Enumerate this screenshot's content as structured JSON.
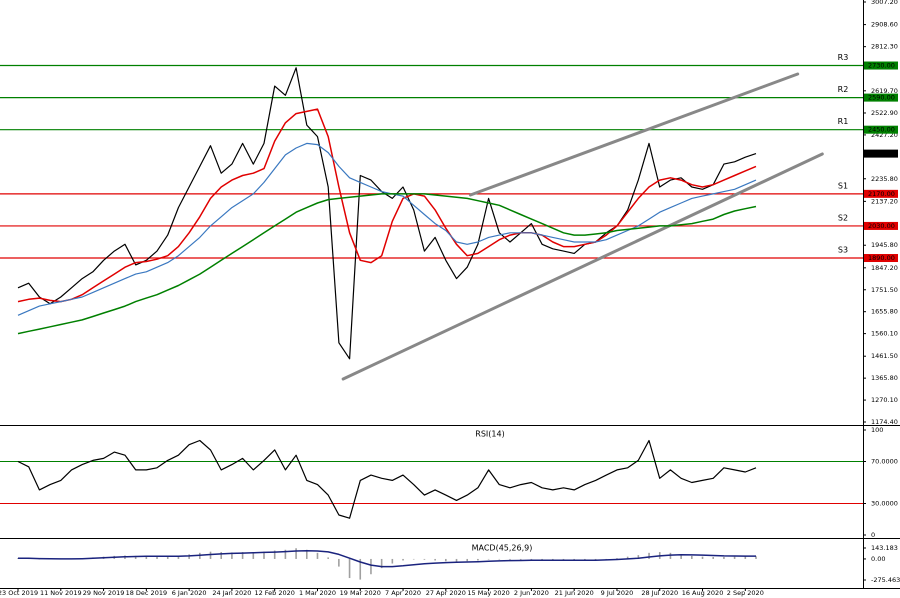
{
  "chart_data": [
    {
      "type": "line",
      "categories": [
        "23 Oct 2019",
        null,
        null,
        null,
        "11 Nov 2019",
        null,
        null,
        null,
        "29 Nov 2019",
        null,
        null,
        null,
        "18 Dec 2019",
        null,
        null,
        null,
        "6 Jan 2020",
        null,
        null,
        null,
        "24 Jan 2020",
        null,
        null,
        null,
        "12 Feb 2020",
        null,
        null,
        null,
        "1 Mar 2020",
        null,
        null,
        null,
        "19 Mar 2020",
        null,
        null,
        null,
        "7 Apr 2020",
        null,
        null,
        null,
        "27 Apr 2020",
        null,
        null,
        null,
        "15 May 2020",
        null,
        null,
        null,
        "2 Jun 2020",
        null,
        null,
        null,
        "21 Jun 2020",
        null,
        null,
        null,
        "9 Jul 2020",
        null,
        null,
        null,
        "28 Jul 2020",
        null,
        null,
        null,
        "16 Aug 2020",
        null,
        null,
        null,
        "2 Sep 2020",
        null
      ],
      "series": [
        {
          "color": "#000000",
          "width": 1.2,
          "values": [
            1760,
            1780,
            1720,
            1690,
            1720,
            1760,
            1800,
            1830,
            1880,
            1920,
            1950,
            1860,
            1880,
            1920,
            1990,
            2110,
            2200,
            2290,
            2380,
            2260,
            2300,
            2390,
            2300,
            2390,
            2640,
            2600,
            2720,
            2470,
            2420,
            2200,
            1520,
            1450,
            2250,
            2230,
            2180,
            2150,
            2200,
            2100,
            1920,
            1980,
            1880,
            1800,
            1850,
            1950,
            2150,
            2000,
            1960,
            2000,
            2040,
            1950,
            1930,
            1920,
            1910,
            1950,
            1960,
            2000,
            2030,
            2100,
            2230,
            2390,
            2200,
            2230,
            2240,
            2200,
            2190,
            2210,
            2300,
            2310,
            2330,
            2345.6
          ]
        },
        {
          "color": "#e00000",
          "width": 1.5,
          "values": [
            1700,
            1710,
            1715,
            1705,
            1700,
            1710,
            1730,
            1760,
            1790,
            1820,
            1850,
            1870,
            1875,
            1885,
            1900,
            1940,
            2000,
            2070,
            2150,
            2200,
            2230,
            2250,
            2260,
            2280,
            2400,
            2480,
            2520,
            2530,
            2540,
            2420,
            2200,
            2000,
            1880,
            1870,
            1900,
            2050,
            2150,
            2170,
            2160,
            2100,
            2020,
            1950,
            1900,
            1910,
            1940,
            1970,
            1990,
            2000,
            2000,
            1990,
            1960,
            1940,
            1940,
            1950,
            1960,
            1990,
            2030,
            2090,
            2150,
            2200,
            2230,
            2240,
            2230,
            2210,
            2200,
            2210,
            2230,
            2250,
            2270,
            2290
          ]
        },
        {
          "color": "#3a78c0",
          "width": 1.2,
          "values": [
            1640,
            1660,
            1680,
            1690,
            1700,
            1710,
            1720,
            1740,
            1760,
            1780,
            1800,
            1820,
            1830,
            1850,
            1870,
            1900,
            1940,
            1980,
            2030,
            2070,
            2110,
            2140,
            2170,
            2220,
            2280,
            2340,
            2370,
            2390,
            2385,
            2350,
            2290,
            2240,
            2220,
            2200,
            2180,
            2170,
            2160,
            2120,
            2080,
            2040,
            2010,
            1960,
            1950,
            1960,
            1980,
            1990,
            2000,
            2000,
            2000,
            1990,
            1980,
            1970,
            1960,
            1960,
            1960,
            1970,
            1990,
            2010,
            2030,
            2060,
            2090,
            2110,
            2130,
            2150,
            2160,
            2170,
            2180,
            2190,
            2210,
            2230
          ]
        },
        {
          "color": "#008000",
          "width": 1.5,
          "values": [
            1560,
            1570,
            1580,
            1590,
            1600,
            1610,
            1620,
            1635,
            1650,
            1665,
            1680,
            1700,
            1715,
            1730,
            1750,
            1770,
            1795,
            1820,
            1850,
            1880,
            1910,
            1940,
            1970,
            2000,
            2030,
            2060,
            2090,
            2110,
            2130,
            2145,
            2150,
            2155,
            2160,
            2165,
            2170,
            2170,
            2170,
            2170,
            2170,
            2165,
            2160,
            2155,
            2150,
            2140,
            2130,
            2120,
            2100,
            2080,
            2060,
            2040,
            2020,
            2000,
            1990,
            1990,
            1995,
            2000,
            2010,
            2015,
            2020,
            2025,
            2030,
            2030,
            2035,
            2040,
            2050,
            2060,
            2080,
            2095,
            2105,
            2115
          ]
        }
      ],
      "ylim": [
        1174.4,
        3007.2
      ],
      "yticks": [
        {
          "value": 3007.2,
          "label": "3007.20"
        },
        {
          "value": 2908.6,
          "label": "2908.60"
        },
        {
          "value": 2812.3,
          "label": "2812.30"
        },
        {
          "value": 2619.7,
          "label": "2619.70"
        },
        {
          "value": 2522.9,
          "label": "2522.90"
        },
        {
          "value": 2427.2,
          "label": "2427.20"
        },
        {
          "value": 2235.8,
          "label": "2235.80"
        },
        {
          "value": 2137.2,
          "label": "2137.20"
        },
        {
          "value": 1945.8,
          "label": "1945.80"
        },
        {
          "value": 1847.2,
          "label": "1847.20"
        },
        {
          "value": 1751.5,
          "label": "1751.50"
        },
        {
          "value": 1655.8,
          "label": "1655.80"
        },
        {
          "value": 1560.1,
          "label": "1560.10"
        },
        {
          "value": 1461.5,
          "label": "1461.50"
        },
        {
          "value": 1365.8,
          "label": "1365.80"
        },
        {
          "value": 1270.1,
          "label": "1270.10"
        },
        {
          "value": 1174.4,
          "label": "1174.40"
        }
      ],
      "levels": [
        {
          "name": "R3",
          "value": 2730,
          "label": "2730.00",
          "color": "#008000"
        },
        {
          "name": "R2",
          "value": 2590,
          "label": "2590.00",
          "color": "#008000"
        },
        {
          "name": "R1",
          "value": 2450,
          "label": "2450.00",
          "color": "#008000"
        },
        {
          "name": "S1",
          "value": 2170,
          "label": "2170.00",
          "color": "#e00000"
        },
        {
          "name": "S2",
          "value": 2030,
          "label": "2030.00",
          "color": "#e00000"
        },
        {
          "name": "S3",
          "value": 1890,
          "label": "1890.00",
          "color": "#e00000"
        }
      ],
      "trendlines": [
        {
          "x": [
            30.4,
            75.2
          ],
          "y": [
            1362,
            2344
          ]
        },
        {
          "x": [
            42.3,
            72.9
          ],
          "y": [
            2165,
            2693
          ]
        }
      ],
      "last_price": {
        "value": 2345.6,
        "label": "2345.60"
      }
    },
    {
      "type": "line",
      "title": "RSI(14)",
      "series": [
        {
          "color": "#000000",
          "width": 1.2,
          "values": [
            70,
            65,
            43,
            48,
            52,
            62,
            67,
            71,
            73,
            79,
            76,
            62,
            62,
            64,
            71,
            76,
            86,
            90,
            81,
            62,
            67,
            73,
            62,
            71,
            81,
            62,
            76,
            52,
            48,
            38,
            19,
            16,
            52,
            57,
            54,
            52,
            57,
            48,
            38,
            43,
            38,
            33,
            38,
            45,
            62,
            48,
            45,
            48,
            50,
            45,
            43,
            45,
            43,
            48,
            52,
            57,
            62,
            64,
            71,
            90,
            54,
            62,
            54,
            50,
            52,
            54,
            64,
            62,
            60,
            64
          ]
        }
      ],
      "ylim": [
        0,
        100
      ],
      "yticks": [
        100,
        {
          "value": 70,
          "label": "70.0000"
        },
        {
          "value": 30,
          "label": "30.0000"
        },
        0
      ],
      "hlines": [
        {
          "value": 70,
          "color": "#008000"
        },
        {
          "value": 30,
          "color": "#e00000"
        }
      ]
    },
    {
      "type": "bar",
      "title": "MACD(45,26,9)",
      "series": [
        {
          "type": "bar",
          "color": "#a0a0a0",
          "values": [
            10,
            5,
            0,
            -5,
            -5,
            0,
            10,
            20,
            30,
            40,
            45,
            40,
            35,
            30,
            35,
            45,
            60,
            80,
            95,
            90,
            85,
            90,
            90,
            95,
            110,
            120,
            140,
            120,
            80,
            20,
            -100,
            -250,
            -270,
            -200,
            -120,
            -60,
            -20,
            0,
            -10,
            -20,
            -30,
            -35,
            -30,
            -20,
            0,
            -5,
            -10,
            -10,
            -5,
            -10,
            -15,
            -20,
            -20,
            -15,
            -10,
            0,
            10,
            30,
            50,
            80,
            90,
            80,
            60,
            40,
            30,
            25,
            25,
            30,
            35,
            35
          ]
        },
        {
          "type": "line",
          "color": "#1a237e",
          "width": 1.5,
          "values": [
            10,
            8,
            5,
            2,
            0,
            0,
            3,
            8,
            15,
            22,
            28,
            32,
            34,
            34,
            34,
            36,
            40,
            48,
            58,
            66,
            72,
            77,
            81,
            85,
            90,
            96,
            104,
            108,
            104,
            92,
            60,
            10,
            -40,
            -80,
            -100,
            -100,
            -90,
            -75,
            -62,
            -54,
            -48,
            -44,
            -40,
            -36,
            -30,
            -25,
            -22,
            -20,
            -18,
            -16,
            -16,
            -17,
            -18,
            -18,
            -16,
            -12,
            -7,
            0,
            10,
            25,
            40,
            50,
            54,
            53,
            50,
            45,
            40,
            38,
            37,
            37
          ]
        }
      ],
      "ylim": [
        -275.463,
        143.183
      ],
      "yticks": [
        143.183,
        {
          "value": 0,
          "label": "0.00"
        },
        -275.463
      ]
    }
  ]
}
